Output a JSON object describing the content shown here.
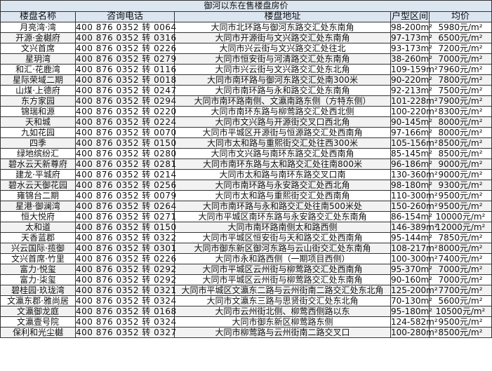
{
  "title": "御河以东在售楼盘房价",
  "headers": [
    "楼盘名称",
    "咨询电话",
    "楼盘地址",
    "户型区间",
    "均价"
  ],
  "rows": [
    [
      "月亮湾·湾",
      "400 876 0352 转 0064",
      "大同市北环路与御河东路交汇处东南角",
      "98-200m²",
      "5980元/m²"
    ],
    [
      "开源·金樾府",
      "400 876 0352 转 0316",
      "大同市开源街与文兴路交汇处东南角",
      "97-173m²",
      "6500元/m²"
    ],
    [
      "文兴首席",
      "400 876 0352 转 0226",
      "大同市兴云街与文兴路交汇处往北",
      "93-173m²",
      "7200元/m²"
    ],
    [
      "星玥湾",
      "400 876 0352 转 0279",
      "大同市恒安街与河清路交汇处东南角",
      "38-260m²",
      "7000元/m²"
    ],
    [
      "和汇·花鹿湾",
      "400 876 0352 转 0116",
      "大同市兴云街与文兴路交汇处东北角",
      "109-159m²",
      "7960元/m²"
    ],
    [
      "星际荣域二期",
      "400 876 0352 转 0018",
      "大同市南环路与御河东路交汇处南300米",
      "90-220m²",
      "7800元/m²"
    ],
    [
      "山煤·上德府",
      "400 876 0352 转 0247",
      "大同市南环路与永和路交汇处东南角",
      "92-213m²",
      "7500元/m²"
    ],
    [
      "东方家园",
      "400 876 0352 转 0294",
      "大同市南环路南侧、文瀛南路东侧（方特东侧）",
      "101-228m²",
      "7900元/m²"
    ],
    [
      "锦瑞和源",
      "400 876 0352 转 0220",
      "大同市南环东路与柳莺路交汇处西北侧",
      "100-220m²",
      "8300元/m²"
    ],
    [
      "天和城",
      "400 876 0352 转 0224",
      "大同市文兴路与开源街交叉口西北角",
      "90-145m²",
      "8000元/m²"
    ],
    [
      "九如花园",
      "400 876 0352 转 0070",
      "大同市平城区开源街与恒源路交汇处西南角",
      "97-166m²",
      "8000元/m²"
    ],
    [
      "四季",
      "400 876 0352 转 0150",
      "大同市太和路与重熙街交汇处往西300米",
      "105-156m²",
      "8500元/m²"
    ],
    [
      "绿地缤纷汇",
      "400 876 0352 转 0280",
      "大同市文兴路与南环东路交汇处西南角",
      "85-145m²",
      "8500元/m²"
    ],
    [
      "碧水云天新尊府",
      "400 876 0352 转 0281",
      "大同市南环东路与太和路交汇处往南800米",
      "96-186m²",
      "9000元/m²"
    ],
    [
      "建龙·平城府",
      "400 876 0352 转 0214",
      "大同市太和路与南环东路交叉口南",
      "130-360m²",
      "9000元/m²"
    ],
    [
      "碧水云天御花园",
      "400 876 0352 转 0256",
      "大同市南环路与永安路交汇处西北角",
      "98-180m²",
      "9300元/m²"
    ],
    [
      "雍锦台二期",
      "400 876 0352 转 0079",
      "大同市太和路与重熙街交汇处西南角",
      "110-300m²",
      "9500元/m²"
    ],
    [
      "星港·御澜湾",
      "400 876 0352 转 0264",
      "大同市南环路与永和路交汇处往南500米处",
      "150-260m²",
      "9500元/m²"
    ],
    [
      "恒大悦府",
      "400 876 0352 转 0271",
      "大同市平城区南环东路与永安路交汇处东南角",
      "86-154m²",
      "10000元/m²"
    ],
    [
      "太和道",
      "400 876 0352 转 0150",
      "大同市南环路南侧太和路西侧",
      "146-389m²",
      "12000元/m²"
    ],
    [
      "天香蓝郡",
      "400 876 0352 转 0322",
      "大同市平城区恒安街与天和路交汇处西南角",
      "95-144m²",
      "7850元/m²"
    ],
    [
      "兴云国际·揽御",
      "400 876 0352 转 0301",
      "大同市御东新区御河东路与云山街交汇处东南角",
      "108-217m²",
      "8000元/m²"
    ],
    [
      "文兴首席·竹里",
      "400 876 0352 转 0226",
      "大同市永和路西侧（一期项目西侧）",
      "100-300m²",
      "7400元/m²"
    ],
    [
      "富力·悦玺",
      "400 876 0352 转 0292",
      "大同市平城区云州街与柳莺路交汇处西南角",
      "95-370m²",
      "7000元/m²"
    ],
    [
      "富力·柒玺",
      "400 876 0352 转 0292",
      "大同市平城区云州街与柳莺路交汇处东南角",
      "90-160m²",
      "7000元/m²"
    ],
    [
      "碧桂园·玖珑湾",
      "400 876 0352 转 0321",
      "大同市平城区文瀛东二路与云州街南二路交汇处东北角",
      "125-200m²",
      "7700元/m²"
    ],
    [
      "文瀛东郡·雅尚居",
      "400 876 0352 转 0324",
      "大同市文瀛东三路与思贤街交汇处东北角",
      "70-130m²",
      "5600元/m²"
    ],
    [
      "文瀛御龙庭",
      "400 876 0352 转 0168",
      "大同市云州街北侧、柳莺西侧路以东",
      "95-180m²",
      "10500元/m²"
    ],
    [
      "文瀛壹号院",
      "400 876 0352 转 0324",
      "大同市御东新区柳莺路东侧",
      "124-582m²",
      "9500元/m²"
    ],
    [
      "保利和光尘樾",
      "400 876 0352 转 0327",
      "大同市柳莺路与云州街南二路交叉口",
      "100-280m²",
      "8500元/m²"
    ]
  ]
}
